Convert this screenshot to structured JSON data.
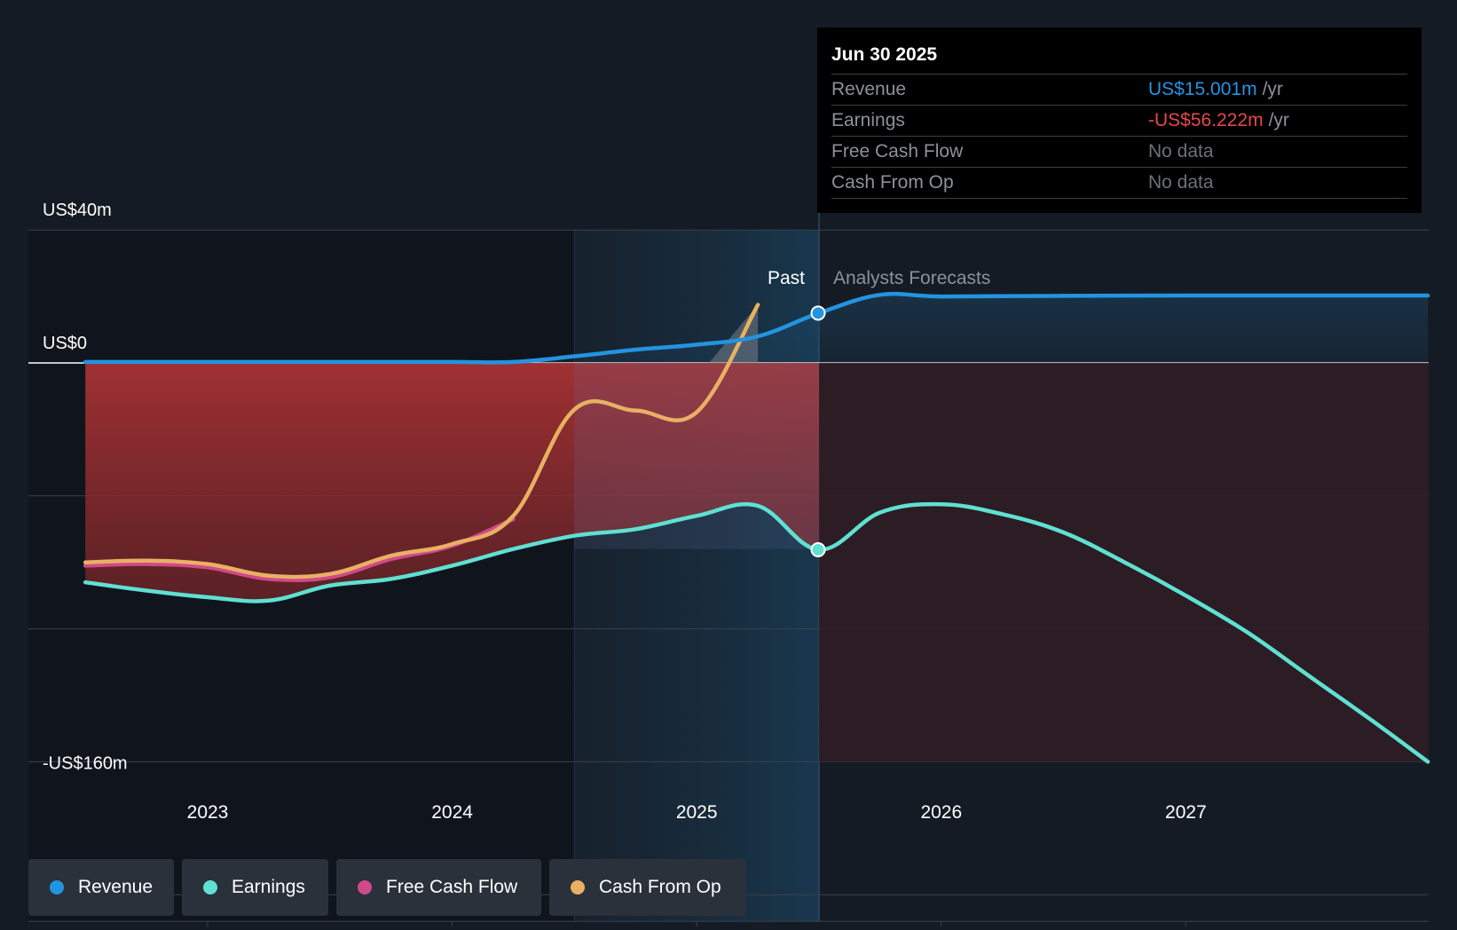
{
  "tooltip": {
    "date": "Jun 30 2025",
    "rows": [
      {
        "label": "Revenue",
        "value": "US$15.001m",
        "unit": "/yr",
        "color": "#2394e0"
      },
      {
        "label": "Earnings",
        "value": "-US$56.222m",
        "unit": "/yr",
        "color": "#e5474c"
      },
      {
        "label": "Free Cash Flow",
        "value": "No data",
        "unit": "",
        "color": "#6c7178"
      },
      {
        "label": "Cash From Op",
        "value": "No data",
        "unit": "",
        "color": "#6c7178"
      }
    ]
  },
  "legend": [
    {
      "label": "Revenue",
      "color": "#2394e0"
    },
    {
      "label": "Earnings",
      "color": "#5fe0d2"
    },
    {
      "label": "Free Cash Flow",
      "color": "#d0498a"
    },
    {
      "label": "Cash From Op",
      "color": "#e8b063"
    }
  ],
  "chart_data": {
    "type": "line",
    "y_labels": [
      "US$40m",
      "US$0",
      "-US$160m"
    ],
    "past_label": "Past",
    "forecast_label": "Analysts Forecasts",
    "x_ticks": [
      {
        "label": "2023",
        "x": 2023.0
      },
      {
        "label": "2024",
        "x": 2024.0
      },
      {
        "label": "2025",
        "x": 2025.0
      },
      {
        "label": "2026",
        "x": 2026.0
      },
      {
        "label": "2027",
        "x": 2027.0
      }
    ],
    "xlim": [
      2022.27,
      2027.99
    ],
    "ylim": [
      -160,
      40
    ],
    "gridlines": [
      40,
      0,
      -40,
      -80,
      -120,
      -160
    ],
    "past_end": 2025.5,
    "shade_start": 2024.5,
    "series": [
      {
        "name": "Revenue",
        "color": "#2394e0",
        "points": [
          [
            2022.5,
            0.3
          ],
          [
            2023.0,
            0.3
          ],
          [
            2023.5,
            0.3
          ],
          [
            2024.0,
            0.3
          ],
          [
            2024.25,
            0.3
          ],
          [
            2024.5,
            2.0
          ],
          [
            2024.75,
            4.0
          ],
          [
            2025.0,
            5.5
          ],
          [
            2025.25,
            8.0
          ],
          [
            2025.5,
            15.0
          ],
          [
            2025.75,
            20.5
          ],
          [
            2026.0,
            20.0
          ],
          [
            2026.5,
            20.2
          ],
          [
            2027.0,
            20.3
          ],
          [
            2027.5,
            20.3
          ],
          [
            2027.99,
            20.3
          ]
        ]
      },
      {
        "name": "Earnings",
        "color": "#5fe0d2",
        "points": [
          [
            2022.5,
            -66
          ],
          [
            2022.75,
            -68.5
          ],
          [
            2023.0,
            -70.5
          ],
          [
            2023.25,
            -71.5
          ],
          [
            2023.5,
            -67
          ],
          [
            2023.75,
            -65
          ],
          [
            2024.0,
            -61
          ],
          [
            2024.25,
            -56
          ],
          [
            2024.5,
            -52
          ],
          [
            2024.75,
            -50
          ],
          [
            2025.0,
            -46
          ],
          [
            2025.25,
            -43
          ],
          [
            2025.5,
            -56.2
          ],
          [
            2025.75,
            -45
          ],
          [
            2026.0,
            -42.5
          ],
          [
            2026.25,
            -45.5
          ],
          [
            2026.5,
            -51
          ],
          [
            2026.75,
            -60
          ],
          [
            2027.0,
            -70
          ],
          [
            2027.25,
            -81
          ],
          [
            2027.5,
            -94
          ],
          [
            2027.75,
            -107
          ],
          [
            2027.99,
            -120
          ]
        ]
      },
      {
        "name": "Free Cash Flow",
        "color": "#d0498a",
        "points": [
          [
            2022.5,
            -61
          ],
          [
            2022.75,
            -60.5
          ],
          [
            2023.0,
            -61.5
          ],
          [
            2023.25,
            -65
          ],
          [
            2023.5,
            -64.5
          ],
          [
            2023.75,
            -59
          ],
          [
            2024.0,
            -55
          ],
          [
            2024.25,
            -47
          ]
        ]
      },
      {
        "name": "Cash From Op",
        "color": "#e8b063",
        "points": [
          [
            2022.5,
            -60
          ],
          [
            2022.75,
            -59.5
          ],
          [
            2023.0,
            -60.5
          ],
          [
            2023.25,
            -64
          ],
          [
            2023.5,
            -63.5
          ],
          [
            2023.75,
            -58
          ],
          [
            2024.0,
            -54.5
          ],
          [
            2024.25,
            -46
          ],
          [
            2024.5,
            -14
          ],
          [
            2024.75,
            -14.3
          ],
          [
            2025.0,
            -14.8
          ],
          [
            2025.25,
            17.5
          ]
        ]
      }
    ]
  }
}
